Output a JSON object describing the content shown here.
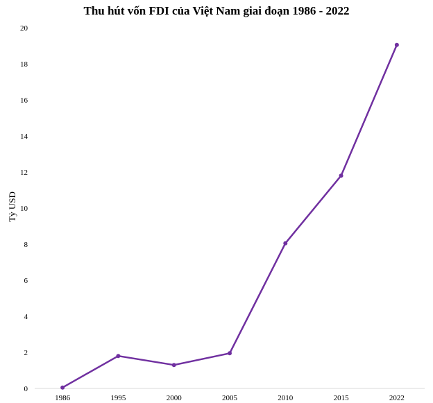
{
  "chart_data": {
    "type": "line",
    "title": "Thu hút vốn FDI của Việt Nam giai đoạn 1986 - 2022",
    "xlabel": "",
    "ylabel": "Tỷ USD",
    "categories": [
      "1986",
      "1995",
      "2000",
      "2005",
      "2010",
      "2015",
      "2022"
    ],
    "series": [
      {
        "values": [
          0.05,
          1.8,
          1.3,
          1.95,
          8.05,
          11.8,
          19.05
        ]
      }
    ],
    "ylim": [
      0,
      20
    ],
    "yticks": [
      "0",
      "2",
      "4",
      "6",
      "8",
      "10",
      "12",
      "14",
      "16",
      "18",
      "20"
    ],
    "grid": false,
    "legend": "none",
    "colors": {
      "line": "#7030a0",
      "axis": "#d9d9d9"
    }
  }
}
